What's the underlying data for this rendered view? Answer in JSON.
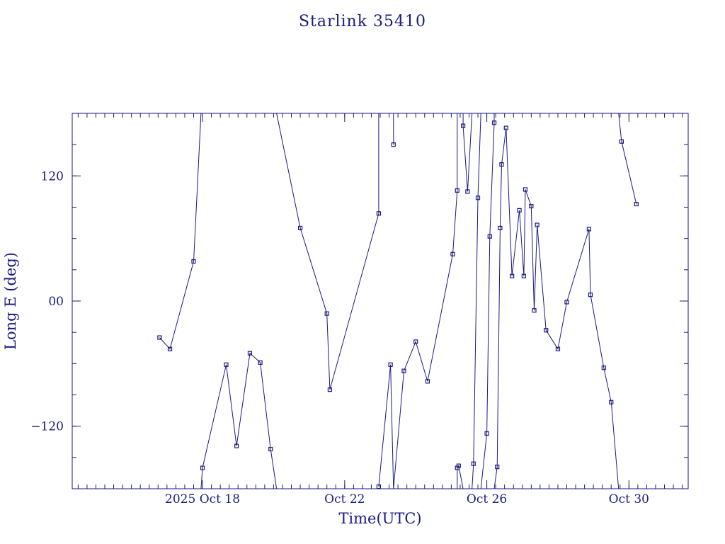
{
  "chart_data": {
    "type": "scatter",
    "title": "Starlink 35410",
    "xlabel": "Time(UTC)",
    "ylabel": "Long E (deg)",
    "x_unit": "date",
    "xlim": [
      "2025-10-14T08:00",
      "2025-10-31T16:00"
    ],
    "ylim": [
      -180,
      180
    ],
    "x_ticks": [
      {
        "x": "2025-10-18T00:00",
        "label": "2025 Oct 18"
      },
      {
        "x": "2025-10-22T00:00",
        "label": "Oct 22"
      },
      {
        "x": "2025-10-26T00:00",
        "label": "Oct 26"
      },
      {
        "x": "2025-10-30T00:00",
        "label": "Oct 30"
      }
    ],
    "y_ticks": [
      {
        "y": 120,
        "label": "120"
      },
      {
        "y": 0,
        "label": "00"
      },
      {
        "y": -120,
        "label": "−120"
      }
    ],
    "grid": false,
    "legend": "none",
    "colors": {
      "line": "#1a1a80",
      "axes": "#1a1a80",
      "text": "#1a1a80",
      "background": "#ffffff"
    },
    "series": [
      {
        "marker": "square",
        "points": [
          [
            "2025-10-16T19:00",
            -35
          ],
          [
            "2025-10-17T02:00",
            -46
          ],
          [
            "2025-10-17T18:00",
            38
          ],
          [
            "2025-10-17T23:00",
            180
          ],
          null,
          [
            "2025-10-17T23:00",
            -180
          ],
          [
            "2025-10-18T00:00",
            -160
          ],
          [
            "2025-10-18T16:00",
            -61
          ],
          [
            "2025-10-18T23:00",
            -139
          ],
          [
            "2025-10-19T08:00",
            -50
          ],
          [
            "2025-10-19T15:00",
            -59
          ],
          [
            "2025-10-19T22:00",
            -142
          ],
          [
            "2025-10-20T02:00",
            -180
          ],
          null,
          [
            "2025-10-20T02:00",
            180
          ],
          [
            "2025-10-20T18:00",
            70
          ],
          [
            "2025-10-21T12:00",
            -12
          ],
          [
            "2025-10-21T14:00",
            -85
          ],
          [
            "2025-10-22T23:00",
            84
          ],
          [
            "2025-10-22T23:00",
            180
          ],
          null,
          [
            "2025-10-22T23:00",
            -178
          ],
          [
            "2025-10-23T07:00",
            -61
          ],
          [
            "2025-10-23T09:00",
            -180
          ],
          null,
          [
            "2025-10-23T09:00",
            180
          ],
          [
            "2025-10-23T09:00",
            150
          ],
          [
            "2025-10-23T09:00",
            180
          ],
          null,
          [
            "2025-10-23T09:00",
            -180
          ],
          [
            "2025-10-23T16:00",
            -67
          ],
          [
            "2025-10-24T00:00",
            -39
          ],
          [
            "2025-10-24T08:00",
            -77
          ],
          [
            "2025-10-25T01:00",
            45
          ],
          [
            "2025-10-25T04:00",
            106
          ],
          [
            "2025-10-25T04:00",
            180
          ],
          null,
          [
            "2025-10-25T04:00",
            -180
          ],
          [
            "2025-10-25T04:00",
            -160
          ],
          [
            "2025-10-25T05:00",
            -158
          ],
          [
            "2025-10-25T08:00",
            -180
          ],
          null,
          [
            "2025-10-25T08:00",
            180
          ],
          [
            "2025-10-25T08:00",
            168
          ],
          [
            "2025-10-25T11:00",
            105
          ],
          [
            "2025-10-25T14:00",
            180
          ],
          null,
          [
            "2025-10-25T14:00",
            -180
          ],
          [
            "2025-10-25T15:00",
            -156
          ],
          [
            "2025-10-25T18:00",
            99
          ],
          [
            "2025-10-25T20:00",
            180
          ],
          null,
          [
            "2025-10-25T20:00",
            -180
          ],
          [
            "2025-10-26T00:00",
            -127
          ],
          [
            "2025-10-26T02:00",
            62
          ],
          [
            "2025-10-26T05:00",
            171
          ],
          [
            "2025-10-26T05:00",
            180
          ],
          null,
          [
            "2025-10-26T05:00",
            -180
          ],
          [
            "2025-10-26T07:00",
            -159
          ],
          [
            "2025-10-26T09:00",
            70
          ],
          [
            "2025-10-26T10:00",
            131
          ],
          [
            "2025-10-26T13:00",
            166
          ],
          [
            "2025-10-26T17:00",
            24
          ],
          [
            "2025-10-26T22:00",
            87
          ],
          [
            "2025-10-27T01:00",
            24
          ],
          [
            "2025-10-27T02:00",
            107
          ],
          [
            "2025-10-27T06:00",
            91
          ],
          [
            "2025-10-27T08:00",
            -9
          ],
          [
            "2025-10-27T10:00",
            73
          ],
          [
            "2025-10-27T16:00",
            -28
          ],
          [
            "2025-10-28T00:00",
            -46
          ],
          [
            "2025-10-28T06:00",
            -1
          ],
          [
            "2025-10-28T21:00",
            69
          ],
          [
            "2025-10-28T22:00",
            6
          ],
          [
            "2025-10-29T07:00",
            -64
          ],
          [
            "2025-10-29T12:00",
            -97
          ],
          [
            "2025-10-29T17:00",
            -180
          ],
          null,
          [
            "2025-10-29T17:00",
            180
          ],
          [
            "2025-10-29T19:00",
            153
          ],
          [
            "2025-10-30T05:00",
            93
          ]
        ]
      }
    ]
  }
}
